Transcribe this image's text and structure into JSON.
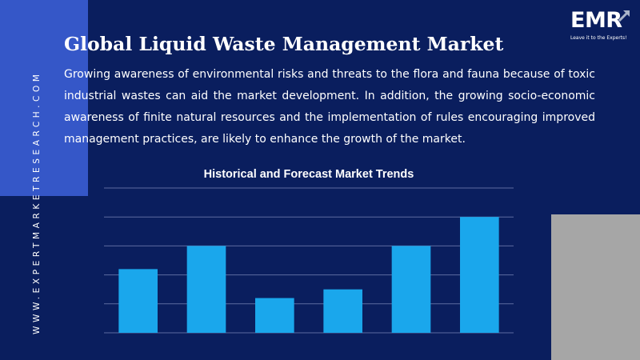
{
  "brand": {
    "logo_text": "EMR",
    "tagline": "Leave it to the Experts!",
    "site_url": "WWW.EXPERTMARKETRESEARCH.COM"
  },
  "header": {
    "title": "Global Liquid Waste Management Market"
  },
  "body": {
    "description": "Growing awareness of environmental risks and threats to the flora and fauna because of toxic industrial wastes can aid the market development. In addition, the growing socio-economic awareness of finite natural resources and the implementation of rules encouraging improved management practices, are likely to enhance the growth of the market."
  },
  "colors": {
    "background": "#0a1e5e",
    "accent_left": "#3557c8",
    "accent_right": "#a6a6a6",
    "bar": "#1aa7ec",
    "gridline": "#5c6ba0"
  },
  "chart_data": {
    "type": "bar",
    "title": "Historical and Forecast Market Trends",
    "xlabel": "",
    "ylabel": "",
    "categories": [
      "",
      "",
      "",
      "",
      "",
      ""
    ],
    "values": [
      2.2,
      3.0,
      1.2,
      1.5,
      3.0,
      4.0
    ],
    "ylim": [
      0,
      5
    ],
    "grid": true,
    "legend": "none"
  }
}
